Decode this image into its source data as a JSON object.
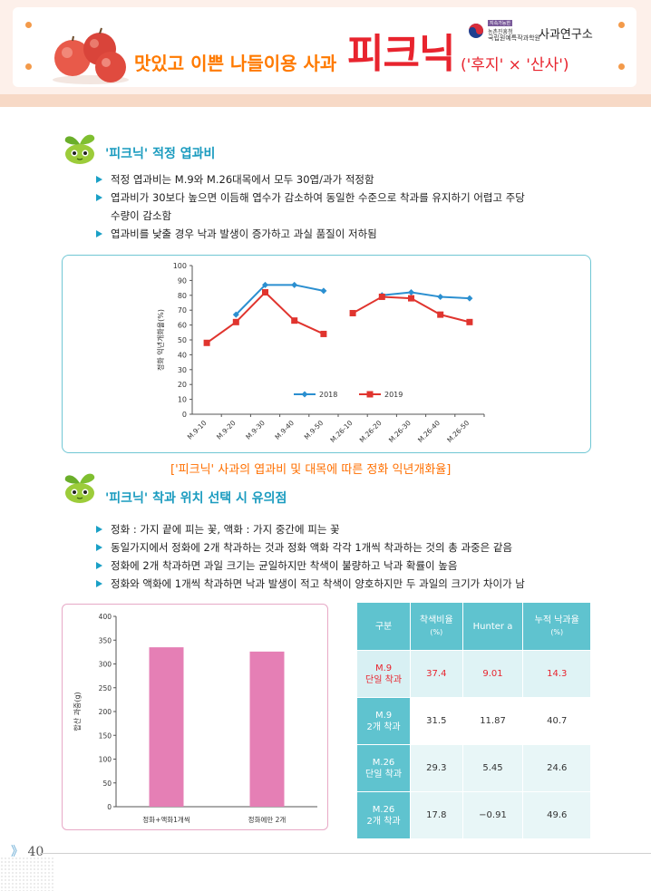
{
  "header": {
    "subtitle": "맛있고 이쁜 나들이용 사과",
    "variety": "피크닉",
    "parentage": "('후지' × '산사')",
    "org_line1": "지속가능한",
    "org_line2": "농촌진흥청",
    "org_line3": "국립원예특작과학원",
    "org_name": "사과연구소"
  },
  "section1": {
    "title": "'피크닉' 적정 엽과비",
    "bullets": [
      "적정 엽과비는 M.9와 M.26대목에서 모두 30엽/과가 적정함",
      "엽과비가 30보다 높으면 이듬해 엽수가 감소하여 동일한 수준으로 착과를 유지하기 어렵고 주당",
      "수량이 감소함",
      "엽과비를 낮출 경우 낙과 발생이 증가하고 과실 품질이 저하됨"
    ],
    "caption": "['피크닉' 사과의 엽과비 및 대목에 따른 정화 익년개화율]"
  },
  "chart_data": [
    {
      "type": "line",
      "categories": [
        "M.9-10",
        "M.9-20",
        "M.9-30",
        "M.9-40",
        "M.9-50",
        "M.26-10",
        "M.26-20",
        "M.26-30",
        "M.26-40",
        "M.26-50"
      ],
      "series": [
        {
          "name": "2018",
          "values": [
            null,
            67,
            87,
            87,
            83,
            null,
            80,
            82,
            79,
            78
          ],
          "color": "#2b8fd0"
        },
        {
          "name": "2019",
          "values": [
            48,
            62,
            82,
            63,
            54,
            68,
            79,
            78,
            67,
            62
          ],
          "color": "#e0342e"
        }
      ],
      "ylabel": "정화 익년개화율(%)",
      "ylim": [
        0,
        100
      ],
      "yticks": [
        0,
        10,
        20,
        30,
        40,
        50,
        60,
        70,
        80,
        90,
        100
      ],
      "legend": "inside-bottom"
    },
    {
      "type": "bar",
      "categories": [
        "정화+액화1개씩",
        "정화에만 2개"
      ],
      "values": [
        335,
        326
      ],
      "ylabel": "합산 과중(g)",
      "ylim": [
        0,
        400
      ],
      "yticks": [
        0,
        50,
        100,
        150,
        200,
        250,
        300,
        350,
        400
      ],
      "color": "#e57fb5"
    }
  ],
  "section2": {
    "title": "'피크닉' 착과 위치 선택 시 유의점",
    "bullets": [
      "정화 : 가지 끝에 피는 꽃, 액화 : 가지 중간에 피는 꽃",
      "동일가지에서 정화에 2개 착과하는 것과 정화 액화 각각 1개씩 착과하는 것의 총 과중은 같음",
      "정화에 2개 착과하면 과일 크기는 균일하지만 착색이 불량하고 낙과 확률이 높음",
      "정화와 액화에 1개씩 착과하면  낙과 발생이 적고 착색이 양호하지만 두 과일의 크기가 차이가 남"
    ]
  },
  "table": {
    "headers": [
      {
        "main": "구분",
        "unit": ""
      },
      {
        "main": "착색비율",
        "unit": "(%)"
      },
      {
        "main": "Hunter a",
        "unit": ""
      },
      {
        "main": "누적 낙과율",
        "unit": "(%)"
      }
    ],
    "rows": [
      {
        "line1": "M.9",
        "line2": "단일 착과",
        "values": [
          "37.4",
          "9.01",
          "14.3"
        ]
      },
      {
        "line1": "M.9",
        "line2": "2개 착과",
        "values": [
          "31.5",
          "11.87",
          "40.7"
        ]
      },
      {
        "line1": "M.26",
        "line2": "단일 착과",
        "values": [
          "29.3",
          "5.45",
          "24.6"
        ]
      },
      {
        "line1": "M.26",
        "line2": "2개 착과",
        "values": [
          "17.8",
          "−0.91",
          "49.6"
        ]
      }
    ]
  },
  "page": {
    "number": "40",
    "marker": "》"
  }
}
